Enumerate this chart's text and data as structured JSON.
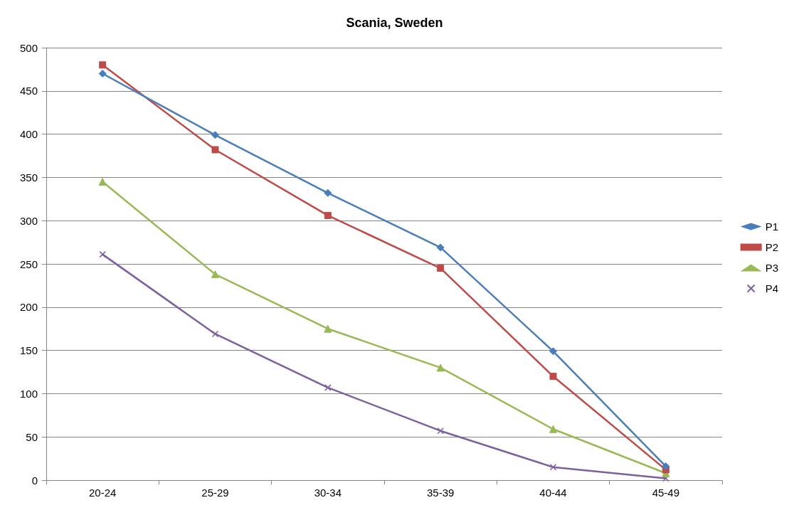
{
  "chart_data": {
    "type": "line",
    "title": "Scania, Sweden",
    "categories": [
      "20-24",
      "25-29",
      "30-34",
      "35-39",
      "40-44",
      "45-49"
    ],
    "series": [
      {
        "name": "P1",
        "color": "#4a7ebb",
        "marker": "diamond",
        "values": [
          470,
          399,
          332,
          269,
          149,
          16
        ]
      },
      {
        "name": "P2",
        "color": "#be4b48",
        "marker": "square",
        "values": [
          480,
          382,
          306,
          245,
          120,
          12
        ]
      },
      {
        "name": "P3",
        "color": "#98b954",
        "marker": "triangle",
        "values": [
          345,
          238,
          175,
          130,
          59,
          8
        ]
      },
      {
        "name": "P4",
        "color": "#7d60a0",
        "marker": "cross",
        "values": [
          261,
          169,
          107,
          57,
          15,
          2
        ]
      }
    ],
    "ylim": [
      0,
      500
    ],
    "yticks": [
      0,
      50,
      100,
      150,
      200,
      250,
      300,
      350,
      400,
      450,
      500
    ],
    "grid": "y",
    "legend": "right",
    "line_style": "solid"
  }
}
